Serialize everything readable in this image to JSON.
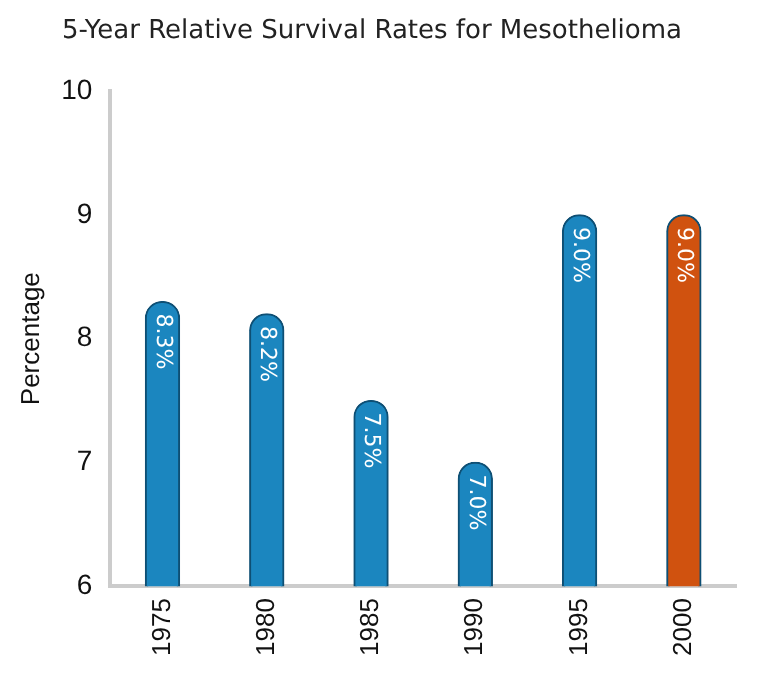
{
  "chart_data": {
    "type": "bar",
    "title": "5-Year Relative Survival Rates for Mesothelioma",
    "ylabel": "Percentage",
    "categories": [
      "1975",
      "1980",
      "1985",
      "1990",
      "1995",
      "2000"
    ],
    "values": [
      8.3,
      8.2,
      7.5,
      7.0,
      9.0,
      9.0
    ],
    "colors": [
      "#1b86bf",
      "#1b86bf",
      "#1b86bf",
      "#1b86bf",
      "#1b86bf",
      "#d0520f"
    ],
    "value_labels": [
      "8.3%",
      "8.2%",
      "7.5%",
      "7.0%",
      "9.0%",
      "9.0%"
    ],
    "ylim": [
      6,
      10
    ],
    "yticks": [
      6,
      7,
      8,
      9,
      10
    ],
    "grid": false,
    "legend": false
  }
}
